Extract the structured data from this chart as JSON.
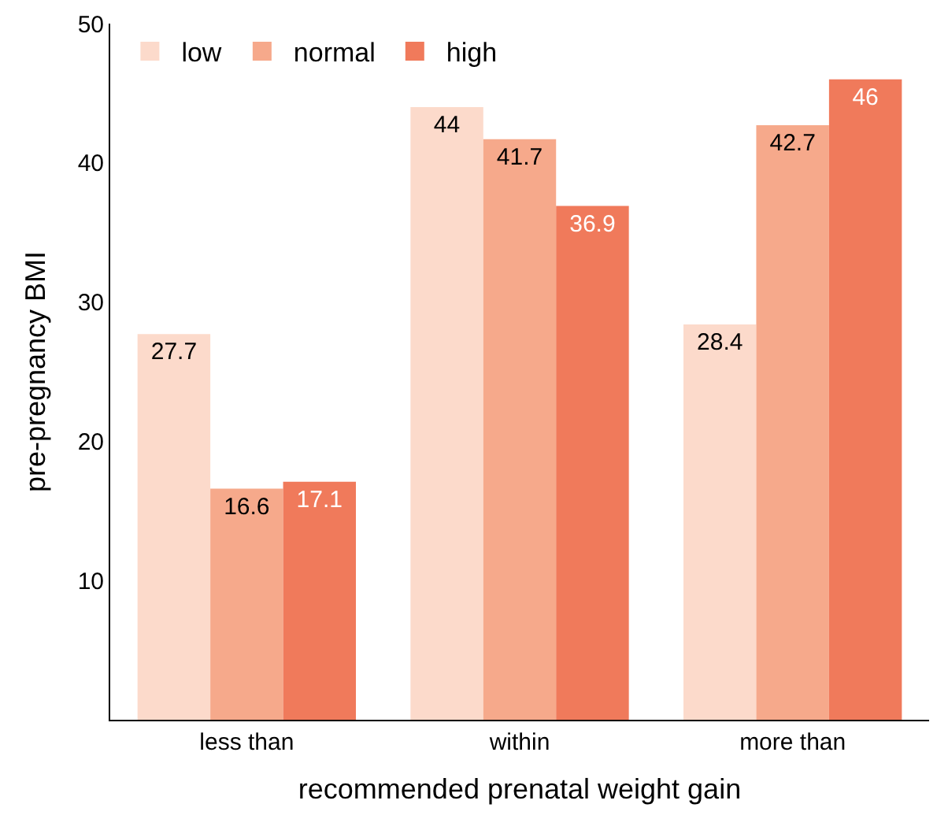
{
  "chart_data": {
    "type": "bar",
    "xlabel": "recommended prenatal weight gain",
    "ylabel": "pre-pregnancy BMI",
    "categories": [
      "less than",
      "within",
      "more than"
    ],
    "series": [
      {
        "name": "low",
        "color": "#fcdacb",
        "values": [
          27.7,
          44,
          28.4
        ]
      },
      {
        "name": "normal",
        "color": "#f6a98b",
        "values": [
          16.6,
          41.7,
          42.7
        ]
      },
      {
        "name": "high",
        "color": "#f07a5b",
        "values": [
          17.1,
          36.9,
          46
        ]
      }
    ],
    "ylim": [
      0,
      50
    ],
    "yticks": [
      10,
      20,
      30,
      40,
      50
    ],
    "legend": "top left",
    "data_labels": true
  }
}
